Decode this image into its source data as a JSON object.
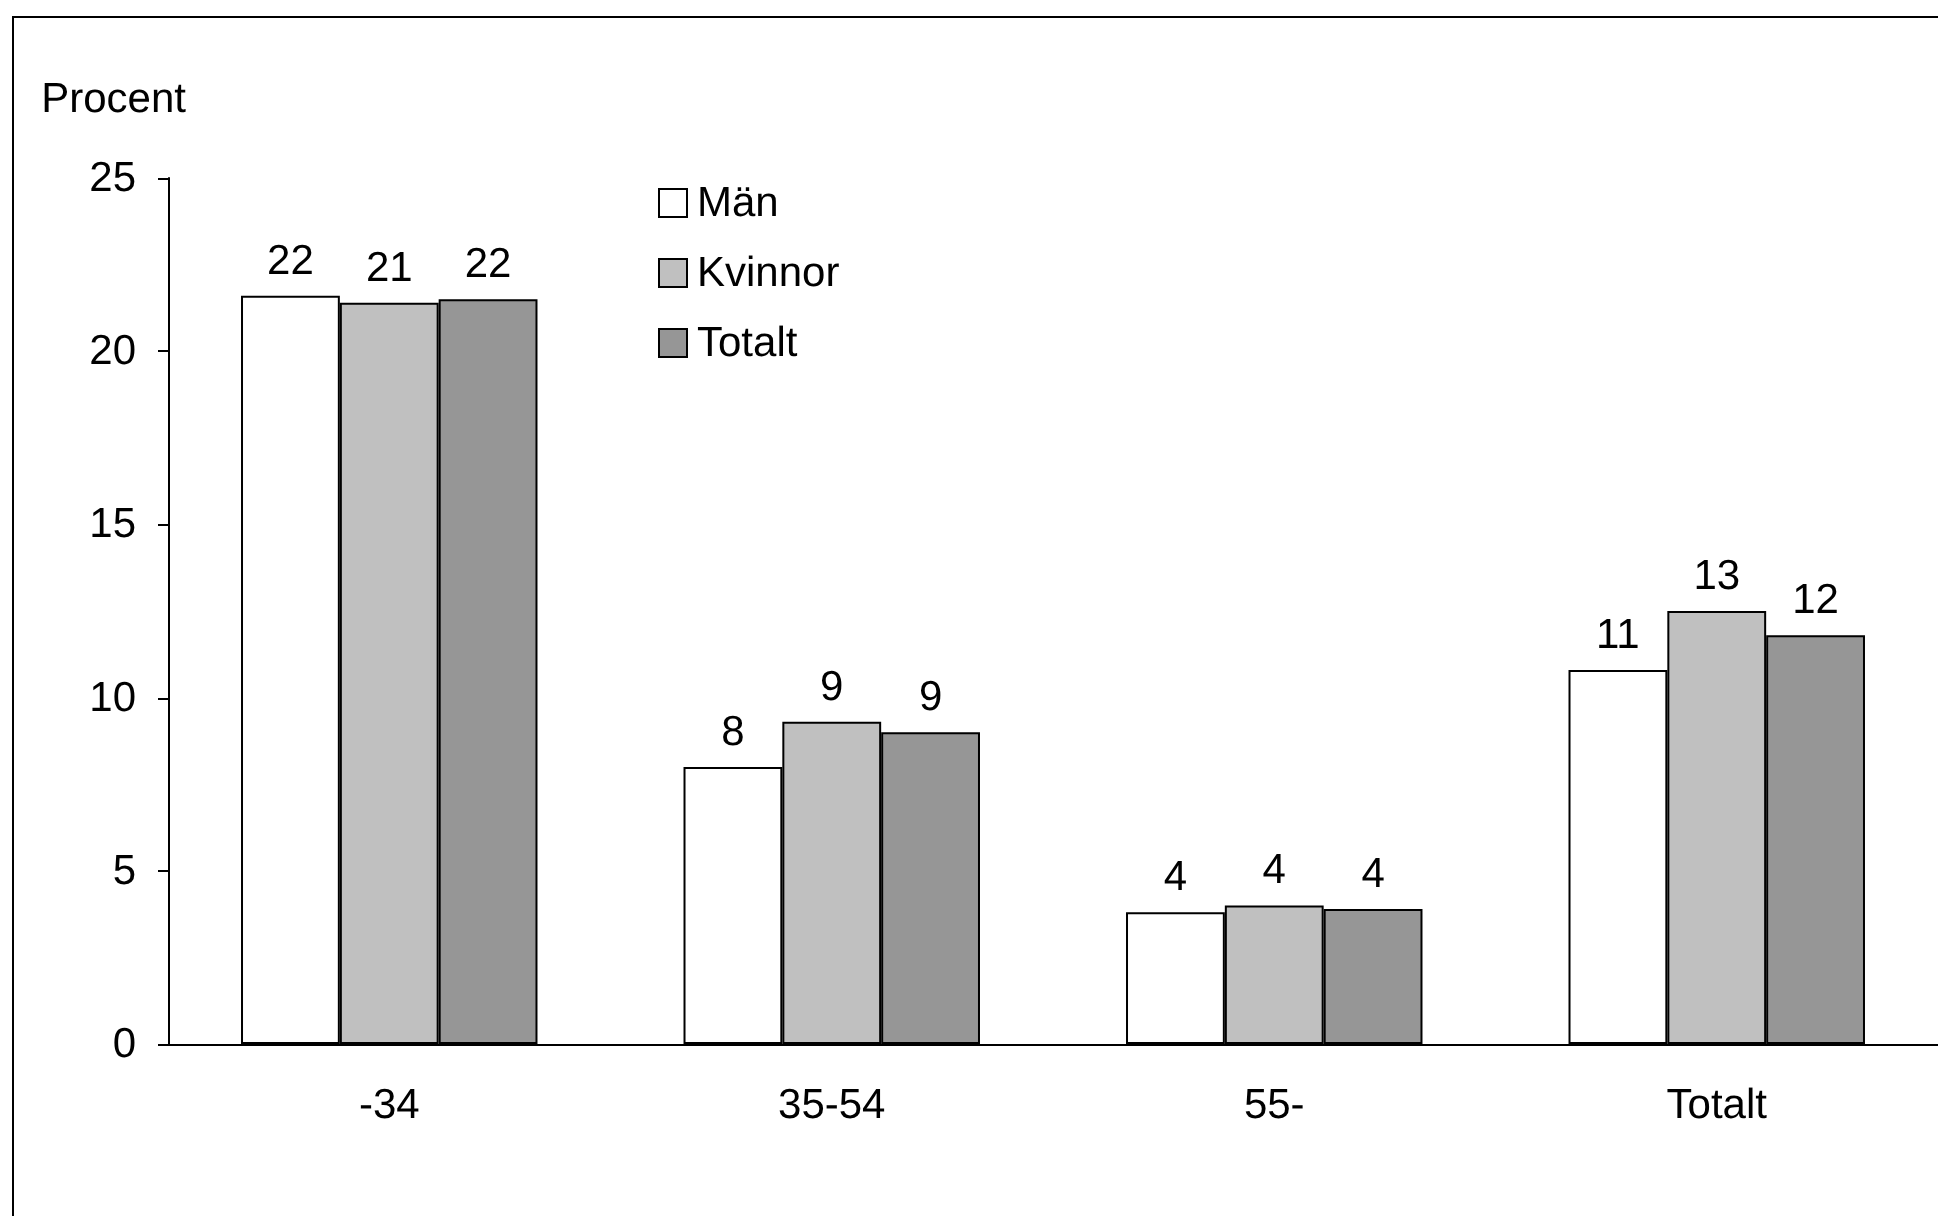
{
  "chart_data": {
    "type": "bar",
    "ylabel": "Procent",
    "categories": [
      "-34",
      "35-54",
      "55-",
      "Totalt"
    ],
    "series": [
      {
        "name": "Män",
        "color": "#ffffff",
        "values": [
          21.6,
          8.0,
          3.8,
          10.8
        ],
        "value_labels": [
          "22",
          "8",
          "4",
          "11"
        ]
      },
      {
        "name": "Kvinnor",
        "color": "#c0c0c0",
        "values": [
          21.4,
          9.3,
          4.0,
          12.5
        ],
        "value_labels": [
          "21",
          "9",
          "4",
          "13"
        ]
      },
      {
        "name": "Totalt",
        "color": "#969696",
        "values": [
          21.5,
          9.0,
          3.9,
          11.8
        ],
        "value_labels": [
          "22",
          "9",
          "4",
          "12"
        ]
      }
    ],
    "ylim": [
      0,
      25
    ],
    "yticks": [
      0,
      5,
      10,
      15,
      20,
      25
    ],
    "legend": "top"
  }
}
